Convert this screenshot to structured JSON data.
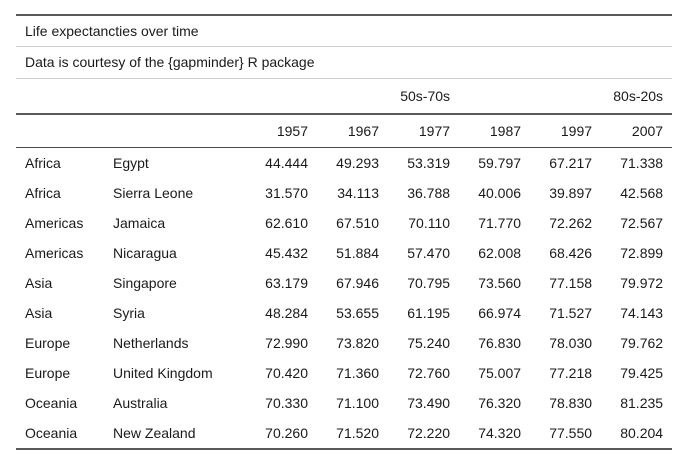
{
  "header": {
    "title": "Life expectancties over time",
    "subtitle": "Data is courtesy of the {gapminder} R package"
  },
  "spanners": {
    "first": "50s-70s",
    "second": "80s-20s"
  },
  "columns": [
    "1957",
    "1967",
    "1977",
    "1987",
    "1997",
    "2007"
  ],
  "rows": [
    {
      "continent": "Africa",
      "country": "Egypt",
      "values": [
        "44.444",
        "49.293",
        "53.319",
        "59.797",
        "67.217",
        "71.338"
      ]
    },
    {
      "continent": "Africa",
      "country": "Sierra Leone",
      "values": [
        "31.570",
        "34.113",
        "36.788",
        "40.006",
        "39.897",
        "42.568"
      ]
    },
    {
      "continent": "Americas",
      "country": "Jamaica",
      "values": [
        "62.610",
        "67.510",
        "70.110",
        "71.770",
        "72.262",
        "72.567"
      ]
    },
    {
      "continent": "Americas",
      "country": "Nicaragua",
      "values": [
        "45.432",
        "51.884",
        "57.470",
        "62.008",
        "68.426",
        "72.899"
      ]
    },
    {
      "continent": "Asia",
      "country": "Singapore",
      "values": [
        "63.179",
        "67.946",
        "70.795",
        "73.560",
        "77.158",
        "79.972"
      ]
    },
    {
      "continent": "Asia",
      "country": "Syria",
      "values": [
        "48.284",
        "53.655",
        "61.195",
        "66.974",
        "71.527",
        "74.143"
      ]
    },
    {
      "continent": "Europe",
      "country": "Netherlands",
      "values": [
        "72.990",
        "73.820",
        "75.240",
        "76.830",
        "78.030",
        "79.762"
      ]
    },
    {
      "continent": "Europe",
      "country": "United Kingdom",
      "values": [
        "70.420",
        "71.360",
        "72.760",
        "75.007",
        "77.218",
        "79.425"
      ]
    },
    {
      "continent": "Oceania",
      "country": "Australia",
      "values": [
        "70.330",
        "71.100",
        "73.490",
        "76.320",
        "78.830",
        "81.235"
      ]
    },
    {
      "continent": "Oceania",
      "country": "New Zealand",
      "values": [
        "70.260",
        "71.520",
        "72.220",
        "74.320",
        "77.550",
        "80.204"
      ]
    }
  ]
}
